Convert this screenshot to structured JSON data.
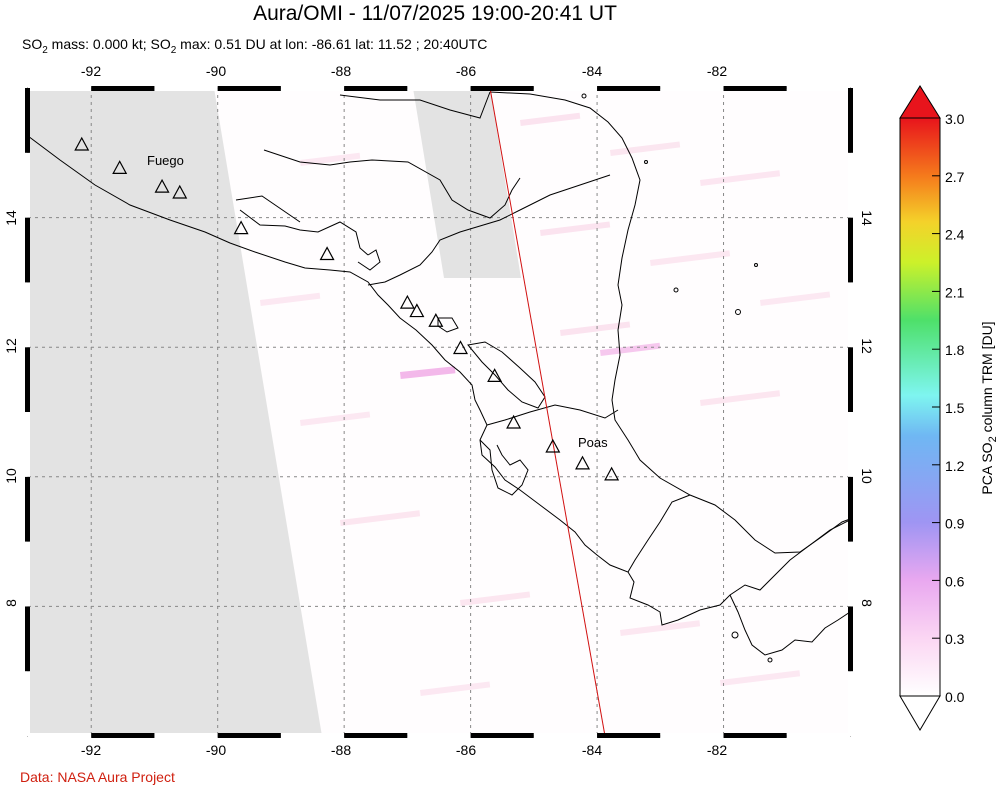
{
  "title": "Aura/OMI - 11/07/2025 19:00-20:41 UT",
  "subtitle_parts": {
    "a1": "SO",
    "a2": "2",
    "a3": " mass: 0.000 kt; SO",
    "a4": "2",
    "a5": " max: 0.51 DU at lon: -86.61 lat: 11.52 ; 20:40UTC"
  },
  "credit": "Data: NASA Aura Project",
  "map": {
    "lon_ticks": [
      "-92",
      "-90",
      "-88",
      "-86",
      "-84",
      "-82"
    ],
    "lat_ticks": [
      "14",
      "12",
      "10",
      "8"
    ],
    "lon_range": [
      -93,
      -80
    ],
    "lat_range": [
      6,
      16
    ],
    "volcano_labels": {
      "fuego": "Fuego",
      "poas": "Poas"
    },
    "colors": {
      "no_data": "#e3e3e3",
      "coast": "#000000",
      "orbit_edge": "#d11010",
      "grid": "#888888"
    }
  },
  "colorbar": {
    "ticks": [
      "3.0",
      "2.7",
      "2.4",
      "2.1",
      "1.8",
      "1.5",
      "1.2",
      "0.9",
      "0.6",
      "0.3",
      "0.0"
    ],
    "label_parts": {
      "b1": "PCA SO",
      "b2": "2",
      "b3": " column TRM [DU]"
    },
    "range": [
      0.0,
      3.0
    ],
    "gradient": [
      "#ffffff",
      "#fbd6f3",
      "#e9a8f0",
      "#9f95f3",
      "#6fb7f3",
      "#7ef5f0",
      "#4ee06a",
      "#ccf12a",
      "#f4d22a",
      "#f57a1c",
      "#e8141c"
    ]
  }
}
